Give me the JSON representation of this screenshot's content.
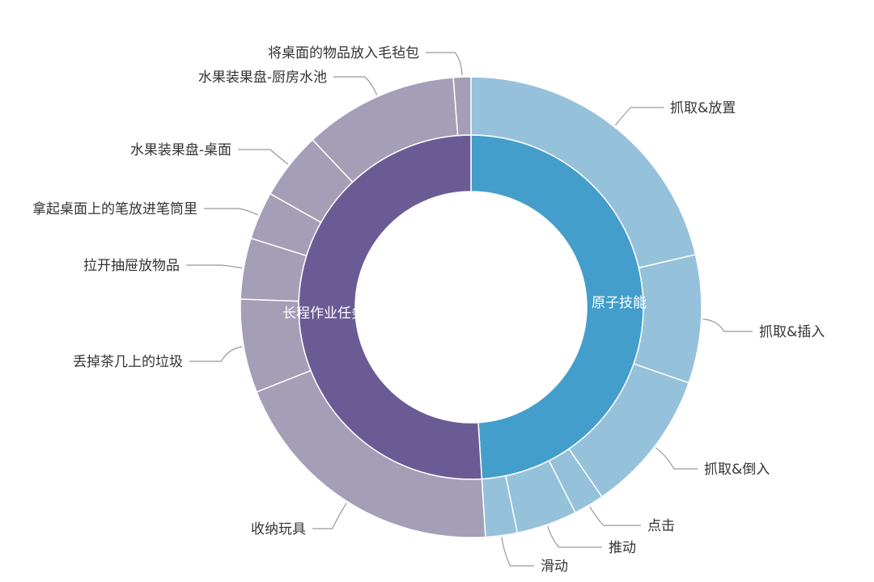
{
  "chart_data": {
    "type": "sunburst",
    "title": "",
    "colors": {
      "inner": [
        "#439ecb",
        "#6b5b95"
      ],
      "outer": [
        "#96c1da",
        "#a49eb6"
      ],
      "label_text": "#333333",
      "leader_line": "#999999"
    },
    "units": "estimated share, degrees of 360",
    "inner": [
      {
        "name": "原子技能",
        "value": 176.4
      },
      {
        "name": "长程作业任务",
        "value": 183.6
      }
    ],
    "outer": [
      {
        "name": "抓取&放置",
        "parent": "原子技能",
        "value": 76.8
      },
      {
        "name": "抓取&插入",
        "parent": "原子技能",
        "value": 32.4
      },
      {
        "name": "抓取&倒入",
        "parent": "原子技能",
        "value": 36.2
      },
      {
        "name": "点击",
        "parent": "原子技能",
        "value": 7.7
      },
      {
        "name": "推动",
        "parent": "原子技能",
        "value": 15.3
      },
      {
        "name": "滑动",
        "parent": "原子技能",
        "value": 8.0
      },
      {
        "name": "收纳玩具",
        "parent": "长程作业任务",
        "value": 72.0
      },
      {
        "name": "丢掉茶几上的垃圾",
        "parent": "长程作业任务",
        "value": 23.6
      },
      {
        "name": "拉开抽屉放物品",
        "parent": "长程作业任务",
        "value": 15.4
      },
      {
        "name": "拿起桌面上的笔放进笔筒里",
        "parent": "长程作业任务",
        "value": 12.1
      },
      {
        "name": "水果装果盘-桌面",
        "parent": "长程作业任务",
        "value": 17.1
      },
      {
        "name": "水果装果盘-厨房水池",
        "parent": "长程作业任务",
        "value": 39.0
      },
      {
        "name": "将桌面的物品放入毛毡包",
        "parent": "长程作业任务",
        "value": 4.4
      }
    ]
  }
}
